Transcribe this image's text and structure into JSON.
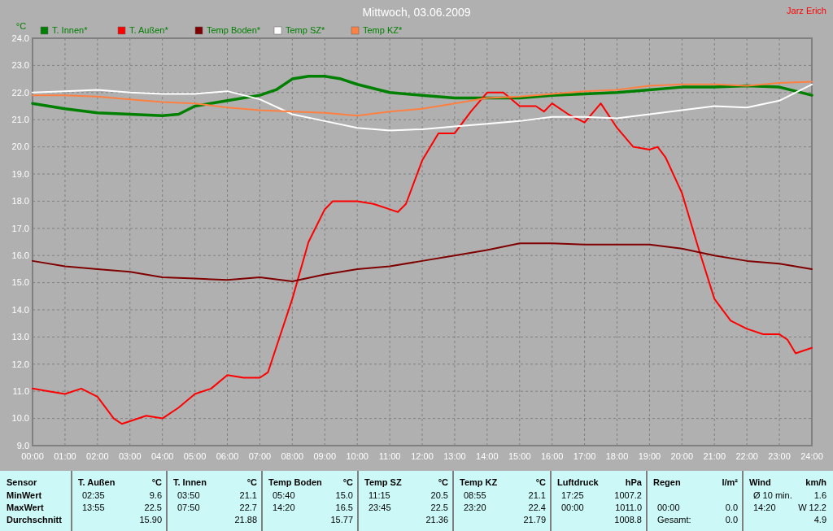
{
  "chart_data": {
    "type": "line",
    "title": "Mittwoch, 03.06.2009",
    "ylabel": "°C",
    "legend": "top",
    "grid": true,
    "line_style": "solid",
    "marker": "none",
    "xlim": [
      0,
      24
    ],
    "ylim": [
      9,
      24
    ],
    "xticks": [
      {
        "value": 0,
        "label": "00:00"
      },
      {
        "value": 1,
        "label": "01:00"
      },
      {
        "value": 2,
        "label": "02:00"
      },
      {
        "value": 3,
        "label": "03:00"
      },
      {
        "value": 4,
        "label": "04:00"
      },
      {
        "value": 5,
        "label": "05:00"
      },
      {
        "value": 6,
        "label": "06:00"
      },
      {
        "value": 7,
        "label": "07:00"
      },
      {
        "value": 8,
        "label": "08:00"
      },
      {
        "value": 9,
        "label": "09:00"
      },
      {
        "value": 10,
        "label": "10:00"
      },
      {
        "value": 11,
        "label": "11:00"
      },
      {
        "value": 12,
        "label": "12:00"
      },
      {
        "value": 13,
        "label": "13:00"
      },
      {
        "value": 14,
        "label": "14:00"
      },
      {
        "value": 15,
        "label": "15:00"
      },
      {
        "value": 16,
        "label": "16:00"
      },
      {
        "value": 17,
        "label": "17:00"
      },
      {
        "value": 18,
        "label": "18:00"
      },
      {
        "value": 19,
        "label": "19:00"
      },
      {
        "value": 20,
        "label": "20:00"
      },
      {
        "value": 21,
        "label": "21:00"
      },
      {
        "value": 22,
        "label": "22:00"
      },
      {
        "value": 23,
        "label": "23:00"
      },
      {
        "value": 24,
        "label": "24:00"
      }
    ],
    "yticks": [
      {
        "value": 9,
        "label": "9.0"
      },
      {
        "value": 10,
        "label": "10.0"
      },
      {
        "value": 11,
        "label": "11.0"
      },
      {
        "value": 12,
        "label": "12.0"
      },
      {
        "value": 13,
        "label": "13.0"
      },
      {
        "value": 14,
        "label": "14.0"
      },
      {
        "value": 15,
        "label": "15.0"
      },
      {
        "value": 16,
        "label": "16.0"
      },
      {
        "value": 17,
        "label": "17.0"
      },
      {
        "value": 18,
        "label": "18.0"
      },
      {
        "value": 19,
        "label": "19.0"
      },
      {
        "value": 20,
        "label": "20.0"
      },
      {
        "value": 21,
        "label": "21.0"
      },
      {
        "value": 22,
        "label": "22.0"
      },
      {
        "value": 23,
        "label": "23.0"
      },
      {
        "value": 24,
        "label": "24.0"
      }
    ],
    "series": [
      {
        "name": "T. Innen*",
        "color": "#008000",
        "x": [
          0,
          1,
          2,
          3,
          4,
          4.5,
          5,
          6,
          7,
          7.5,
          8,
          8.5,
          9,
          9.5,
          10,
          11,
          12,
          13,
          14,
          15,
          16,
          17,
          18,
          19,
          20,
          21,
          22,
          23,
          24
        ],
        "values": [
          21.6,
          21.4,
          21.25,
          21.2,
          21.15,
          21.2,
          21.5,
          21.7,
          21.9,
          22.1,
          22.5,
          22.6,
          22.6,
          22.5,
          22.3,
          22.0,
          21.9,
          21.8,
          21.8,
          21.8,
          21.9,
          21.95,
          22.0,
          22.1,
          22.2,
          22.2,
          22.25,
          22.2,
          21.9
        ]
      },
      {
        "name": "T. Außen*",
        "color": "#ff0000",
        "x": [
          0,
          0.5,
          1,
          1.5,
          2,
          2.5,
          2.75,
          3,
          3.5,
          4,
          4.5,
          5,
          5.5,
          6,
          6.5,
          7,
          7.25,
          7.5,
          8,
          8.5,
          9,
          9.25,
          10,
          10.5,
          11,
          11.25,
          11.5,
          12,
          12.5,
          13,
          13.5,
          14,
          14.5,
          15,
          15.5,
          15.75,
          16,
          16.5,
          17,
          17.5,
          18,
          18.5,
          19,
          19.25,
          19.5,
          20,
          20.5,
          21,
          21.5,
          22,
          22.5,
          23,
          23.25,
          23.5,
          24
        ],
        "values": [
          11.1,
          11.0,
          10.9,
          11.1,
          10.8,
          10.0,
          9.8,
          9.9,
          10.1,
          10.0,
          10.4,
          10.9,
          11.1,
          11.6,
          11.5,
          11.5,
          11.7,
          12.6,
          14.4,
          16.5,
          17.7,
          18.0,
          18.0,
          17.9,
          17.7,
          17.6,
          17.9,
          19.5,
          20.5,
          20.5,
          21.3,
          22.0,
          22.0,
          21.5,
          21.5,
          21.3,
          21.6,
          21.2,
          20.9,
          21.6,
          20.7,
          20.0,
          19.9,
          20.0,
          19.6,
          18.3,
          16.3,
          14.4,
          13.6,
          13.3,
          13.1,
          13.1,
          12.9,
          12.4,
          12.6
        ]
      },
      {
        "name": "Temp Boden*",
        "color": "#800000",
        "x": [
          0,
          1,
          2,
          3,
          4,
          5,
          6,
          7,
          8,
          9,
          10,
          11,
          12,
          13,
          14,
          15,
          16,
          17,
          18,
          19,
          20,
          21,
          22,
          23,
          24
        ],
        "values": [
          15.8,
          15.6,
          15.5,
          15.4,
          15.2,
          15.15,
          15.1,
          15.2,
          15.05,
          15.3,
          15.5,
          15.6,
          15.8,
          16.0,
          16.2,
          16.45,
          16.45,
          16.4,
          16.4,
          16.4,
          16.25,
          16.0,
          15.8,
          15.7,
          15.5
        ]
      },
      {
        "name": "Temp SZ*",
        "color": "#ffffff",
        "x": [
          0,
          1,
          2,
          3,
          4,
          5,
          6,
          7,
          8,
          9,
          10,
          11,
          12,
          13,
          14,
          15,
          16,
          17,
          18,
          19,
          20,
          21,
          22,
          23,
          24
        ],
        "values": [
          22.0,
          22.05,
          22.1,
          22.0,
          21.95,
          21.95,
          22.05,
          21.75,
          21.2,
          20.95,
          20.7,
          20.6,
          20.65,
          20.75,
          20.85,
          20.95,
          21.1,
          21.1,
          21.05,
          21.2,
          21.35,
          21.5,
          21.45,
          21.7,
          22.3
        ]
      },
      {
        "name": "Temp KZ*",
        "color": "#ff8040",
        "x": [
          0,
          1,
          2,
          3,
          4,
          5,
          6,
          7,
          8,
          9,
          10,
          11,
          12,
          13,
          14,
          15,
          16,
          17,
          18,
          19,
          20,
          21,
          22,
          23,
          24
        ],
        "values": [
          21.9,
          21.9,
          21.85,
          21.75,
          21.65,
          21.6,
          21.45,
          21.35,
          21.3,
          21.25,
          21.15,
          21.3,
          21.4,
          21.6,
          21.8,
          21.85,
          21.95,
          22.05,
          22.1,
          22.25,
          22.3,
          22.3,
          22.25,
          22.35,
          22.4
        ]
      }
    ],
    "annotations": [
      "Jarz Erich",
      "Sensor",
      "MinWert",
      "MaxWert",
      "Durchschnitt",
      "T. Außen",
      "°C",
      "02:35",
      "9.6",
      "13:55",
      "22.5",
      null,
      "15.90",
      "T. Innen",
      "°C",
      "03:50",
      "21.1",
      "07:50",
      "22.7",
      null,
      "21.88",
      "Temp Boden",
      "°C",
      "05:40",
      "15.0",
      "14:20",
      "16.5",
      null,
      "15.77",
      "Temp SZ",
      "°C",
      "11:15",
      "20.5",
      "23:45",
      "22.5",
      null,
      "21.36",
      "Temp KZ",
      "°C",
      "08:55",
      "21.1",
      "23:20",
      "22.4",
      null,
      "21.79",
      "Luftdruck",
      "hPa",
      "17:25",
      "1007.2",
      "00:00",
      "1011.0",
      null,
      "1008.8",
      "Regen",
      "l/m²",
      null,
      null,
      "00:00",
      "0.0",
      "Gesamt:",
      "0.0",
      "Wind",
      "km/h",
      "Ø 10 min.",
      "1.6",
      "14:20",
      "W 12.2",
      null,
      "4.9"
    ]
  }
}
